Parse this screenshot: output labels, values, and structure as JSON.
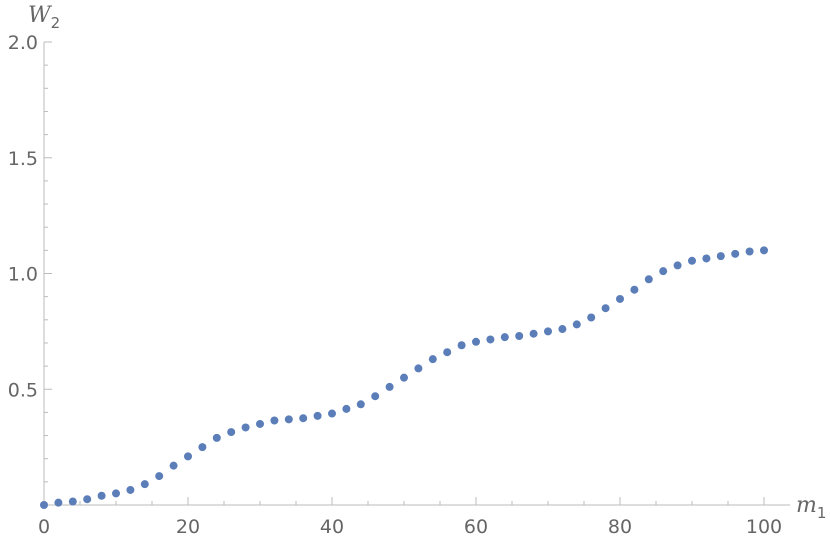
{
  "chart_data": {
    "type": "scatter",
    "title": "",
    "xlabel": "m",
    "xlabel_sub": "1",
    "ylabel": "W",
    "ylabel_sub": "2",
    "xlim": [
      0,
      100
    ],
    "ylim": [
      0,
      2.0
    ],
    "xticks": [
      0,
      20,
      40,
      60,
      80,
      100
    ],
    "xtick_labels": [
      "0",
      "20",
      "40",
      "60",
      "80",
      "100"
    ],
    "yticks": [
      0.5,
      1.0,
      1.5,
      2.0
    ],
    "ytick_labels": [
      "0.5",
      "1.0",
      "1.5",
      "2.0"
    ],
    "grid": false,
    "marker_color": "#5b7db8",
    "series": [
      {
        "x": [
          0,
          2,
          4,
          6,
          8,
          10,
          12,
          14,
          16,
          18,
          20,
          22,
          24,
          26,
          28,
          30,
          32,
          34,
          36,
          38,
          40,
          42,
          44,
          46,
          48,
          50,
          52,
          54,
          56,
          58,
          60,
          62,
          64,
          66,
          68,
          70,
          72,
          74,
          76,
          78,
          80,
          82,
          84,
          86,
          88,
          90,
          92,
          94,
          96,
          98,
          100
        ],
        "y": [
          0.0,
          0.01,
          0.015,
          0.025,
          0.04,
          0.05,
          0.065,
          0.09,
          0.125,
          0.17,
          0.21,
          0.25,
          0.29,
          0.315,
          0.335,
          0.35,
          0.365,
          0.37,
          0.375,
          0.385,
          0.395,
          0.415,
          0.435,
          0.47,
          0.51,
          0.55,
          0.59,
          0.63,
          0.66,
          0.69,
          0.705,
          0.715,
          0.725,
          0.73,
          0.74,
          0.75,
          0.76,
          0.78,
          0.81,
          0.85,
          0.89,
          0.93,
          0.975,
          1.01,
          1.035,
          1.055,
          1.065,
          1.075,
          1.085,
          1.095,
          1.1
        ]
      }
    ]
  }
}
